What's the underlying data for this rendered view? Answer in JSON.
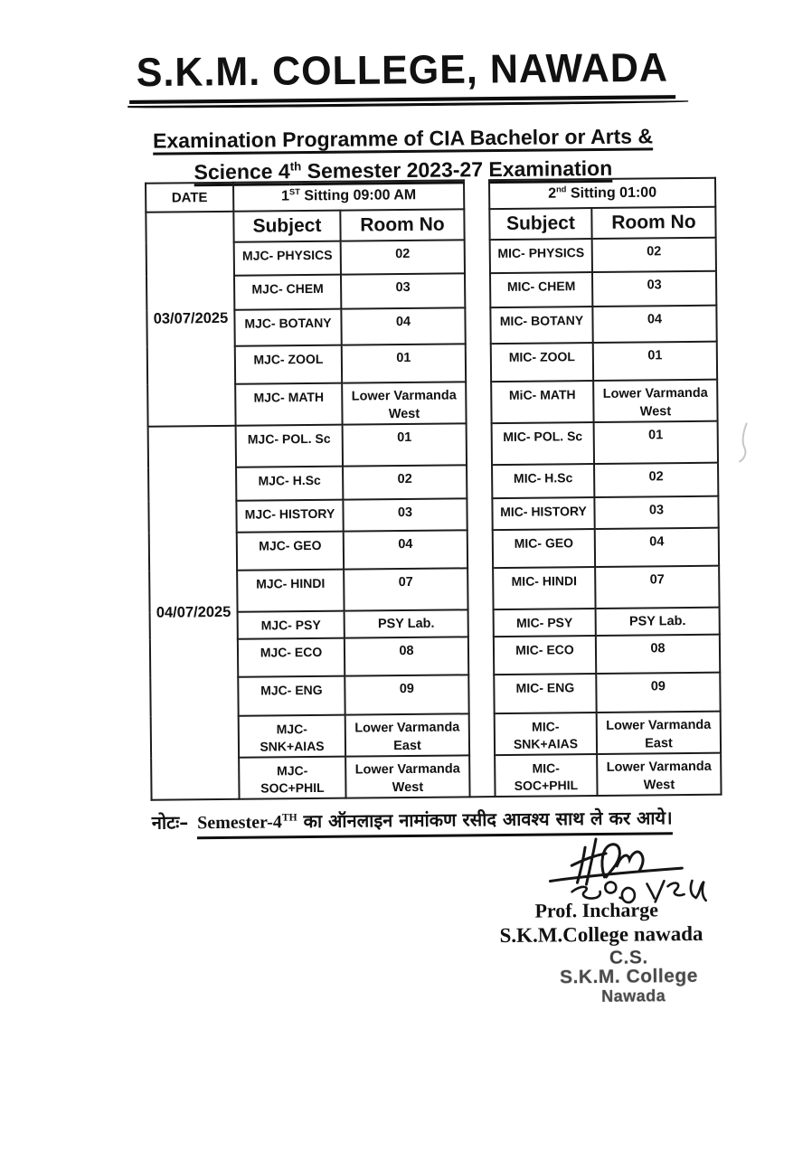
{
  "title": "S.K.M. COLLEGE, NAWADA",
  "subtitle": {
    "line1": "Examination Programme of CIA Bachelor or Arts &",
    "line2_pre": "Science 4",
    "line2_sup": "th",
    "line2_post": "  Semester 2023-27 Examination"
  },
  "table": {
    "date_header": "DATE",
    "sitting1": {
      "num": "1",
      "sup": "ST",
      "rest": " Sitting 09:00 AM"
    },
    "sitting2": {
      "num": "2",
      "sup": "nd",
      "rest": " Sitting 01:00"
    },
    "col_headers": {
      "subject": "Subject",
      "room": "Room No"
    },
    "date_groups": [
      {
        "date": "03/07/2025"
      },
      {
        "date": "04/07/2025"
      }
    ],
    "rows": [
      {
        "s1": "MJC- PHYSICS",
        "r1": "02",
        "s2": "MIC- PHYSICS",
        "r2": "02"
      },
      {
        "s1": "MJC- CHEM",
        "r1": "03",
        "s2": "MIC- CHEM",
        "r2": "03"
      },
      {
        "s1": "MJC- BOTANY",
        "r1": "04",
        "s2": "MIC- BOTANY",
        "r2": "04"
      },
      {
        "s1": "MJC- ZOOL",
        "r1": "01",
        "s2": "MIC- ZOOL",
        "r2": "01"
      },
      {
        "s1": "MJC- MATH",
        "r1": "Lower Varmanda West",
        "s2": "MiC- MATH",
        "r2": "Lower Varmanda West"
      },
      {
        "s1": "MJC- POL. Sc",
        "r1": "01",
        "s2": "MIC- POL. Sc",
        "r2": "01"
      },
      {
        "s1": "MJC- H.Sc",
        "r1": "02",
        "s2": "MIC- H.Sc",
        "r2": "02"
      },
      {
        "s1": "MJC- HISTORY",
        "r1": "03",
        "s2": "MIC- HISTORY",
        "r2": "03"
      },
      {
        "s1": "MJC- GEO",
        "r1": "04",
        "s2": "MIC- GEO",
        "r2": "04"
      },
      {
        "s1": "MJC- HINDI",
        "r1": "07",
        "s2": "MIC- HINDI",
        "r2": "07"
      },
      {
        "s1": "MJC- PSY",
        "r1": "PSY Lab.",
        "s2": "MIC- PSY",
        "r2": "PSY Lab."
      },
      {
        "s1": "MJC- ECO",
        "r1": "08",
        "s2": "MIC- ECO",
        "r2": "08"
      },
      {
        "s1": "MJC- ENG",
        "r1": "09",
        "s2": "MIC- ENG",
        "r2": "09"
      },
      {
        "s1": "MJC- SNK+AIAS",
        "r1": "Lower Varmanda East",
        "s2": "MIC- SNK+AIAS",
        "r2": "Lower Varmanda East"
      },
      {
        "s1": "MJC- SOC+PHIL",
        "r1": "Lower Varmanda West",
        "s2": "MIC- SOC+PHIL",
        "r2": "Lower Varmanda West"
      }
    ]
  },
  "note": {
    "label": "नोटः–",
    "sem_pre": "Semester-4",
    "sem_sup": "TH",
    "text": " का ऑनलाइन नामांकण रसीद आवश्य साथ ले कर आये।"
  },
  "signature": {
    "handwritten_date": "30.06.25",
    "line1": "Prof. Incharge",
    "line2": "S.K.M.College nawada",
    "stamp_line1": "C.S.",
    "stamp_line2": "S.K.M. College",
    "stamp_line3": "Nawada"
  },
  "colors": {
    "ink": "#111111",
    "stamp_gray": "#4a4a4a",
    "paper": "#ffffff"
  }
}
